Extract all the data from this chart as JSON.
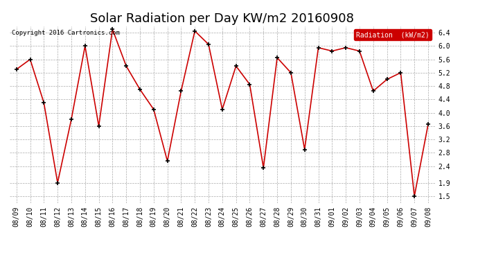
{
  "title": "Solar Radiation per Day KW/m2 20160908",
  "copyright": "Copyright 2016 Cartronics.com",
  "legend_label": "Radiation  (kW/m2)",
  "dates": [
    "08/09",
    "08/10",
    "08/11",
    "08/12",
    "08/13",
    "08/14",
    "08/15",
    "08/16",
    "08/17",
    "08/18",
    "08/19",
    "08/20",
    "08/21",
    "08/22",
    "08/23",
    "08/24",
    "08/25",
    "08/26",
    "08/27",
    "08/28",
    "08/29",
    "08/30",
    "08/31",
    "09/01",
    "09/02",
    "09/03",
    "09/04",
    "09/05",
    "09/06",
    "09/07",
    "09/08"
  ],
  "values": [
    5.3,
    5.6,
    4.3,
    1.9,
    3.8,
    6.0,
    3.6,
    6.5,
    5.4,
    4.7,
    4.1,
    2.55,
    4.65,
    6.45,
    6.05,
    4.1,
    5.4,
    4.85,
    2.35,
    5.65,
    5.2,
    2.9,
    5.95,
    5.85,
    5.95,
    5.85,
    4.65,
    5.0,
    5.2,
    1.5,
    3.65
  ],
  "line_color": "#cc0000",
  "marker_color": "#000000",
  "background_color": "#ffffff",
  "grid_color": "#aaaaaa",
  "ylim": [
    1.3,
    6.6
  ],
  "yticks": [
    1.5,
    1.9,
    2.4,
    2.8,
    3.2,
    3.6,
    4.0,
    4.4,
    4.8,
    5.2,
    5.6,
    6.0,
    6.4
  ],
  "legend_bg": "#cc0000",
  "legend_text_color": "#ffffff",
  "title_fontsize": 13,
  "tick_fontsize": 7,
  "copyright_fontsize": 6.5
}
